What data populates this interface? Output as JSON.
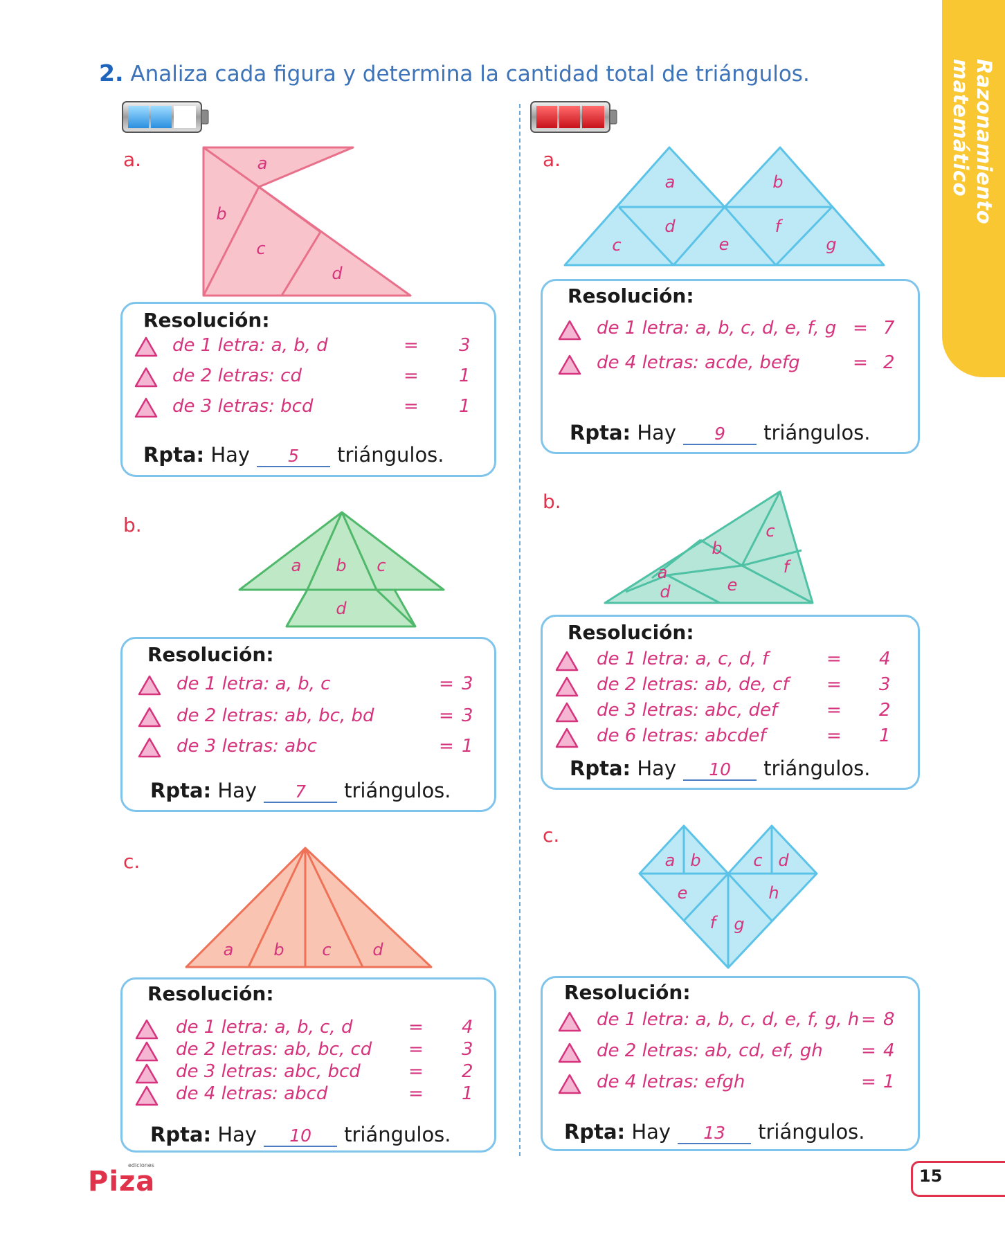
{
  "side_tab": "Razonamiento matemático",
  "instruction": {
    "number": "2.",
    "text": "Analiza cada figura y determina la cantidad total de triángulos."
  },
  "left": {
    "a": {
      "label": "a.",
      "figure_letters": [
        "a",
        "b",
        "c",
        "d"
      ],
      "title": "Resolución:",
      "lines": [
        {
          "text": "de 1 letra: a, b, d",
          "eq": "=",
          "val": "3"
        },
        {
          "text": "de 2 letras: cd",
          "eq": "=",
          "val": "1"
        },
        {
          "text": "de 3 letras: bcd",
          "eq": "=",
          "val": "1"
        }
      ],
      "rpta_label": "Rpta:",
      "rpta_pre": "Hay",
      "answer": "5",
      "rpta_post": "triángulos."
    },
    "b": {
      "label": "b.",
      "figure_letters": [
        "a",
        "b",
        "c",
        "d"
      ],
      "title": "Resolución:",
      "lines": [
        {
          "text": "de 1 letra: a, b, c",
          "eq": "=",
          "val": "3"
        },
        {
          "text": "de 2 letras: ab, bc, bd",
          "eq": "=",
          "val": "3"
        },
        {
          "text": "de 3 letras: abc",
          "eq": "=",
          "val": "1"
        }
      ],
      "rpta_label": "Rpta:",
      "rpta_pre": "Hay",
      "answer": "7",
      "rpta_post": "triángulos."
    },
    "c": {
      "label": "c.",
      "figure_letters": [
        "a",
        "b",
        "c",
        "d"
      ],
      "title": "Resolución:",
      "lines": [
        {
          "text": "de 1 letra: a, b, c, d",
          "eq": "=",
          "val": "4"
        },
        {
          "text": "de 2 letras: ab, bc, cd",
          "eq": "=",
          "val": "3"
        },
        {
          "text": "de 3 letras: abc, bcd",
          "eq": "=",
          "val": "2"
        },
        {
          "text": "de 4 letras: abcd",
          "eq": "=",
          "val": "1"
        }
      ],
      "rpta_label": "Rpta:",
      "rpta_pre": "Hay",
      "answer": "10",
      "rpta_post": "triángulos."
    }
  },
  "right": {
    "a": {
      "label": "a.",
      "figure_letters": [
        "a",
        "b",
        "c",
        "d",
        "e",
        "f",
        "g"
      ],
      "title": "Resolución:",
      "lines": [
        {
          "text": "de 1 letra: a, b, c, d, e, f, g",
          "eq": "=",
          "val": "7"
        },
        {
          "text": "de 4 letras: acde, befg",
          "eq": "=",
          "val": "2"
        }
      ],
      "rpta_label": "Rpta:",
      "rpta_pre": "Hay",
      "answer": "9",
      "rpta_post": "triángulos."
    },
    "b": {
      "label": "b.",
      "figure_letters": [
        "a",
        "b",
        "c",
        "d",
        "e",
        "f"
      ],
      "title": "Resolución:",
      "lines": [
        {
          "text": "de 1 letra: a, c, d, f",
          "eq": "=",
          "val": "4"
        },
        {
          "text": "de 2 letras: ab, de, cf",
          "eq": "=",
          "val": "3"
        },
        {
          "text": "de 3 letras: abc, def",
          "eq": "=",
          "val": "2"
        },
        {
          "text": "de 6 letras: abcdef",
          "eq": "=",
          "val": "1"
        }
      ],
      "rpta_label": "Rpta:",
      "rpta_pre": "Hay",
      "answer": "10",
      "rpta_post": "triángulos."
    },
    "c": {
      "label": "c.",
      "figure_letters": [
        "a",
        "b",
        "c",
        "d",
        "e",
        "h",
        "f",
        "g"
      ],
      "title": "Resolución:",
      "lines": [
        {
          "text": "de 1 letra: a, b, c, d, e, f, g, h",
          "eq": "=",
          "val": "8"
        },
        {
          "text": "de 2 letras: ab, cd, ef, gh",
          "eq": "=",
          "val": "4"
        },
        {
          "text": "de 4 letras: efgh",
          "eq": "=",
          "val": "1"
        }
      ],
      "rpta_label": "Rpta:",
      "rpta_pre": "Hay",
      "answer": "13",
      "rpta_post": "triángulos."
    }
  },
  "logo": {
    "small": "ediciones",
    "brand": "Piza"
  },
  "page_number": "15",
  "colors": {
    "pink": "#d6337d",
    "red_label": "#e0324b",
    "blue_text": "#3c73b9",
    "box_border": "#7fc5eb",
    "tab": "#f9c732"
  }
}
